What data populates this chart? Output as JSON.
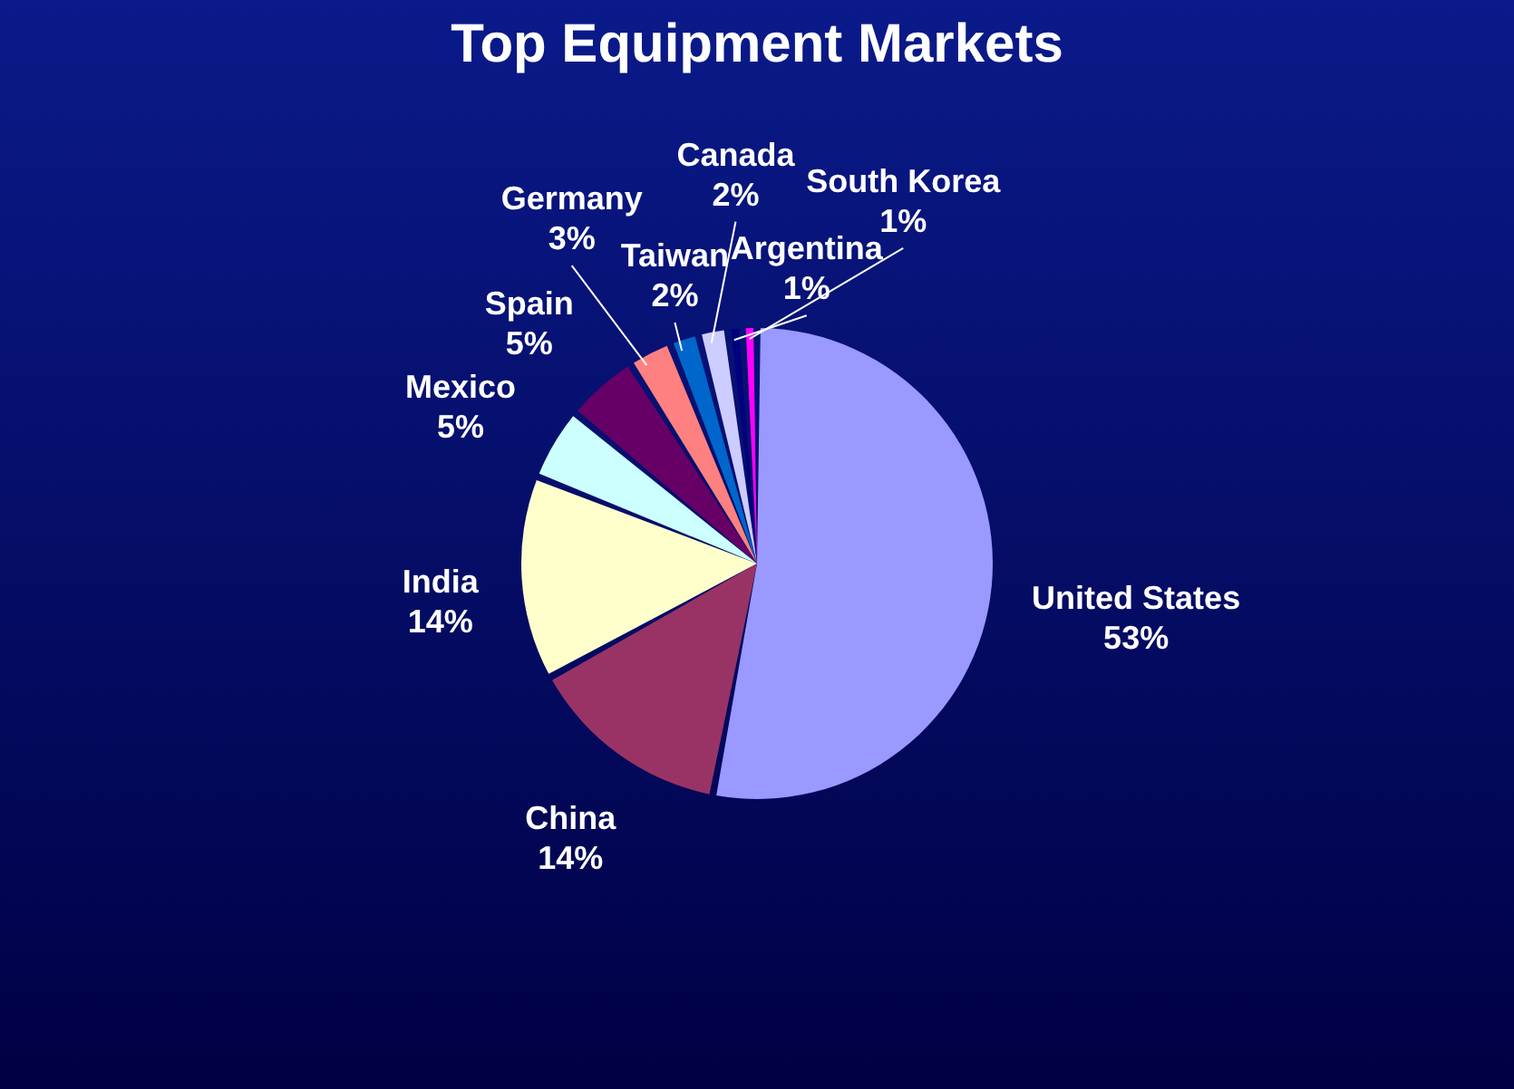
{
  "chart_data": {
    "type": "pie",
    "title": "Top Equipment Markets",
    "categories": [
      "United States",
      "China",
      "India",
      "Mexico",
      "Spain",
      "Germany",
      "Taiwan",
      "Canada",
      "Argentina",
      "South Korea"
    ],
    "values": [
      53,
      14,
      14,
      5,
      5,
      3,
      2,
      2,
      1,
      1
    ],
    "value_labels": [
      "53%",
      "14%",
      "14%",
      "5%",
      "5%",
      "3%",
      "2%",
      "2%",
      "1%",
      "1%"
    ],
    "colors": [
      "#9999ff",
      "#993366",
      "#ffffcc",
      "#ccffff",
      "#660066",
      "#ff8080",
      "#0066cc",
      "#ccccff",
      "#000080",
      "#ff00ff"
    ],
    "legend": false
  }
}
